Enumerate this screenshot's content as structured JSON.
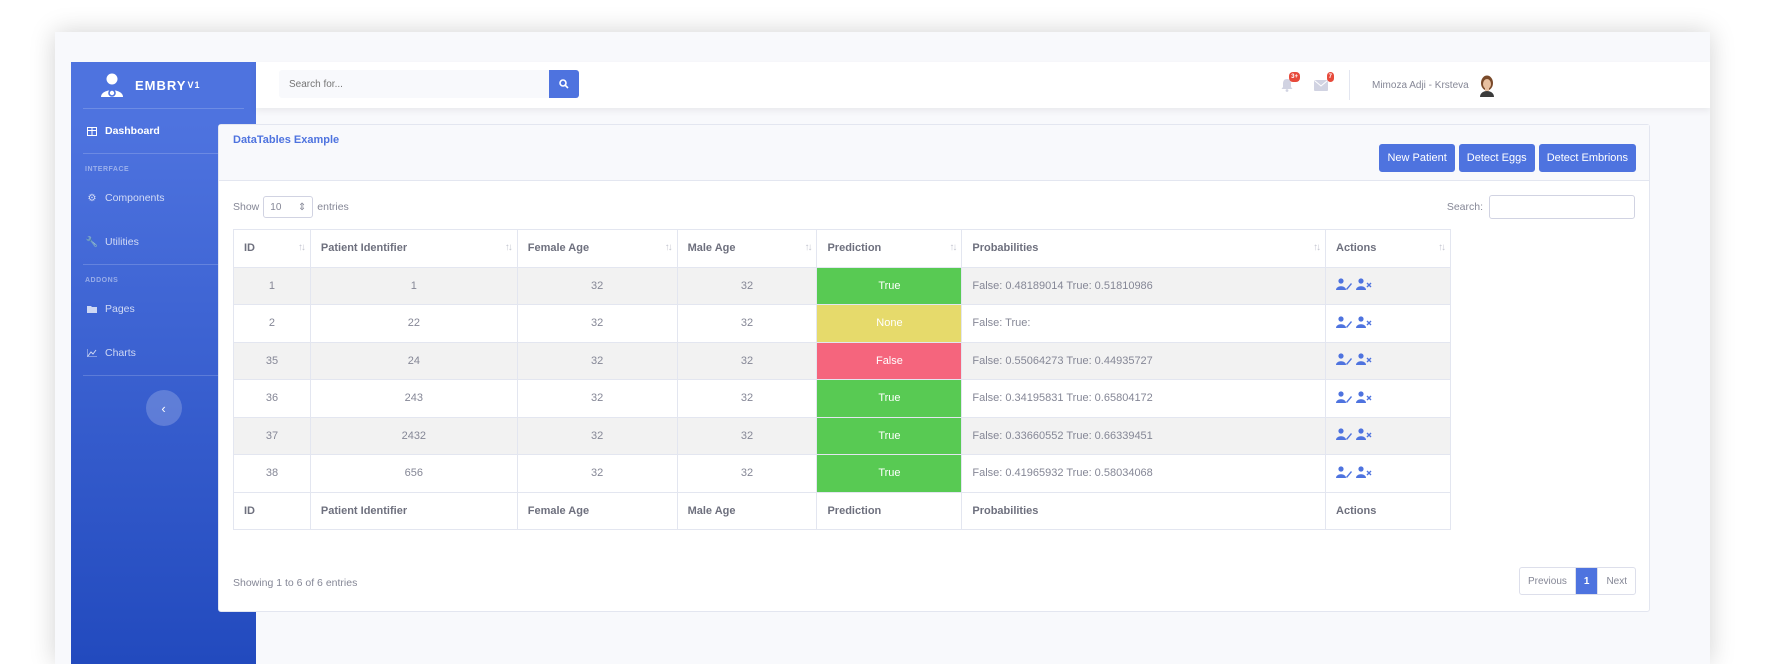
{
  "app": {
    "brand": "EMBRY",
    "brand_version": "V1"
  },
  "sidebar": {
    "dashboard": "Dashboard",
    "heading_interface": "INTERFACE",
    "components": "Components",
    "utilities": "Utilities",
    "heading_addons": "ADDONS",
    "pages": "Pages",
    "charts": "Charts"
  },
  "topbar": {
    "search_placeholder": "Search for...",
    "alerts_badge": "3+",
    "messages_badge": "7",
    "user_name": "Mimoza Adji - Krsteva"
  },
  "card": {
    "title": "DataTables Example",
    "buttons": {
      "new_patient": "New Patient",
      "detect_eggs": "Detect Eggs",
      "detect_embrions": "Detect Embrions"
    }
  },
  "datatable": {
    "show_label": "Show",
    "entries_label": "entries",
    "page_length": "10",
    "search_label": "Search:",
    "columns": {
      "id": "ID",
      "patient": "Patient Identifier",
      "female": "Female Age",
      "male": "Male Age",
      "prediction": "Prediction",
      "probabilities": "Probabilities",
      "actions": "Actions"
    },
    "rows": [
      {
        "id": "1",
        "patient": "1",
        "female": "32",
        "male": "32",
        "prediction": "True",
        "probabilities": "False: 0.48189014 True: 0.51810986"
      },
      {
        "id": "2",
        "patient": "22",
        "female": "32",
        "male": "32",
        "prediction": "None",
        "probabilities": "False: True:"
      },
      {
        "id": "35",
        "patient": "24",
        "female": "32",
        "male": "32",
        "prediction": "False",
        "probabilities": "False: 0.55064273 True: 0.44935727"
      },
      {
        "id": "36",
        "patient": "243",
        "female": "32",
        "male": "32",
        "prediction": "True",
        "probabilities": "False: 0.34195831 True: 0.65804172"
      },
      {
        "id": "37",
        "patient": "2432",
        "female": "32",
        "male": "32",
        "prediction": "True",
        "probabilities": "False: 0.33660552 True: 0.66339451"
      },
      {
        "id": "38",
        "patient": "656",
        "female": "32",
        "male": "32",
        "prediction": "True",
        "probabilities": "False: 0.41965932 True: 0.58034068"
      }
    ],
    "info": "Showing 1 to 6 of 6 entries",
    "pagination": {
      "previous": "Previous",
      "current": "1",
      "next": "Next"
    }
  },
  "colors": {
    "primary": "#4e73df",
    "true": "#58ca53",
    "none": "#e6da6b",
    "false": "#f5657d"
  }
}
